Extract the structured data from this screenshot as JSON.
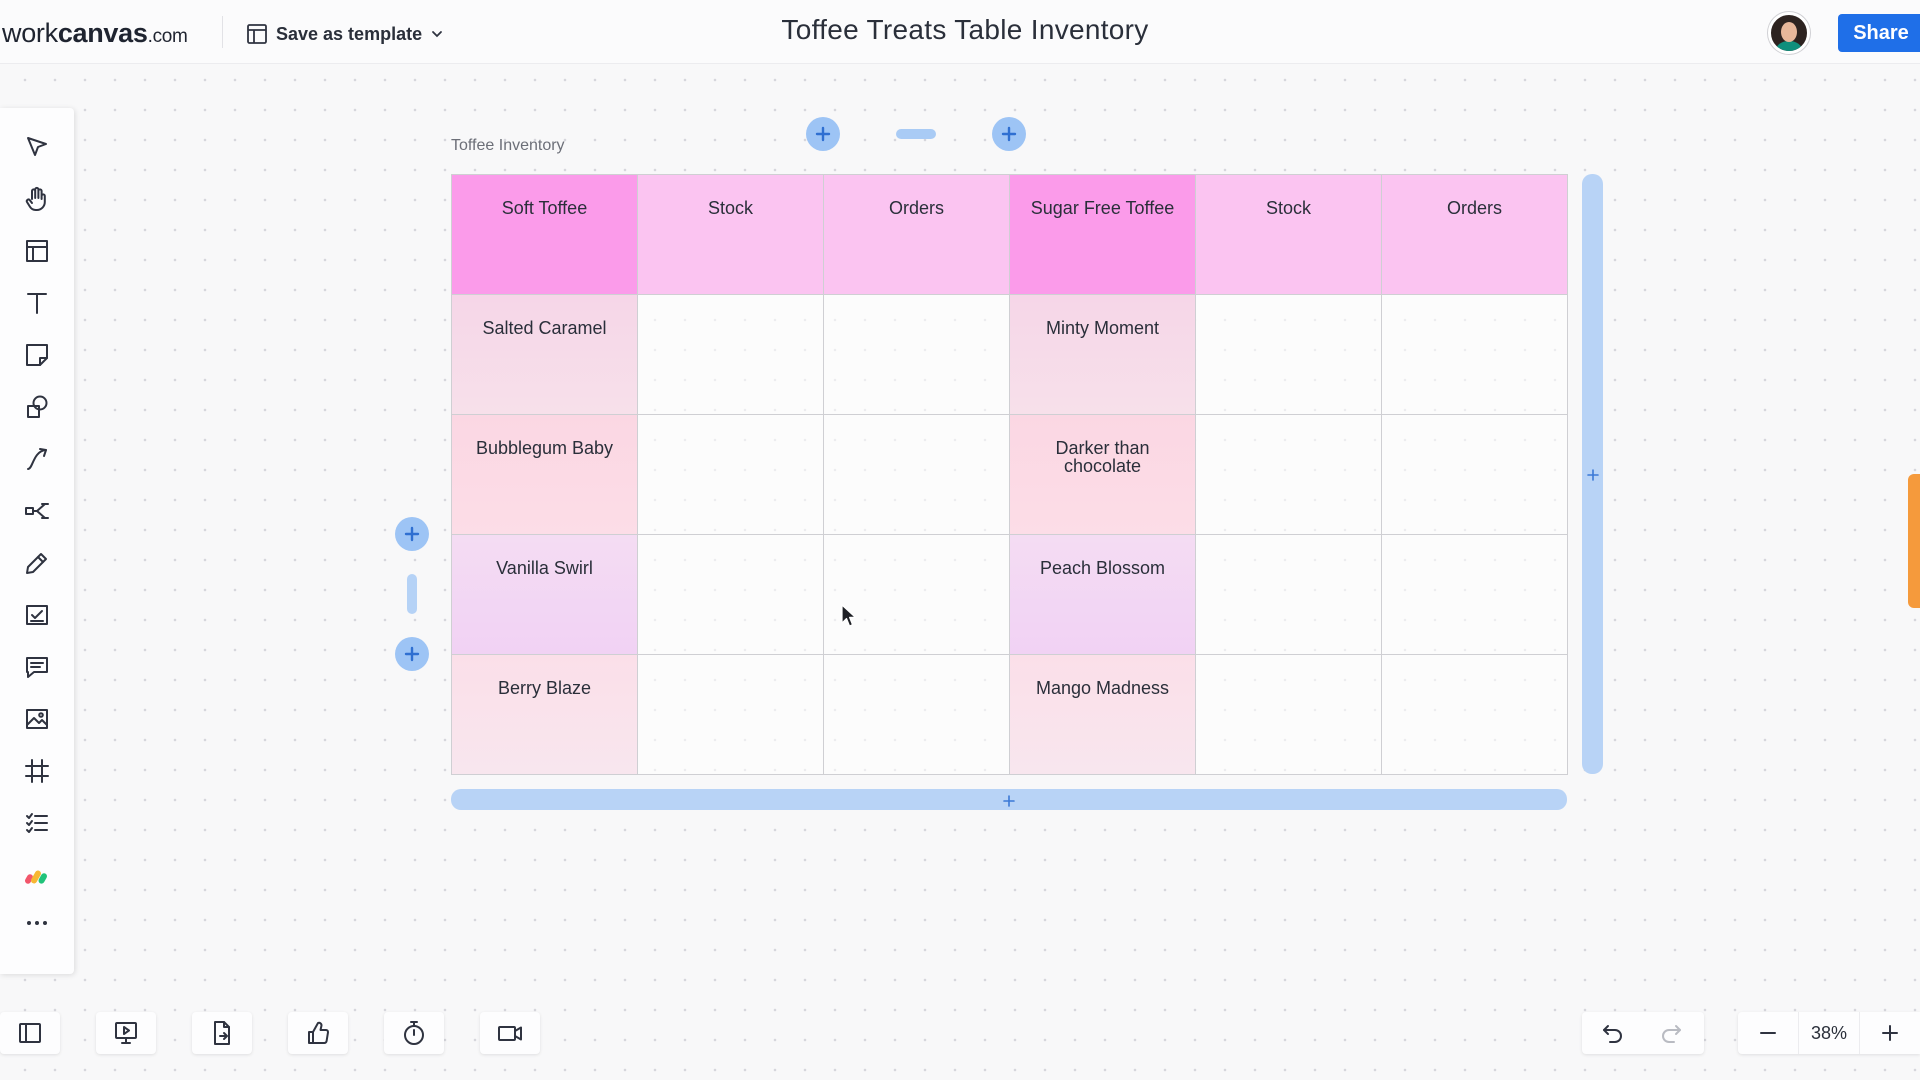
{
  "header": {
    "logo_main": "work",
    "logo_bold": "canvas",
    "logo_suffix": ".com",
    "save_template_label": "Save as template",
    "board_title": "Toffee Treats Table Inventory",
    "share_label": "Share"
  },
  "toolbar": {
    "tools": [
      "select-icon",
      "hand-icon",
      "frame-icon",
      "text-icon",
      "sticky-note-icon",
      "shapes-icon",
      "connector-icon",
      "mind-map-icon",
      "pen-icon",
      "task-icon",
      "comment-icon",
      "image-icon",
      "grid-icon",
      "checklist-icon",
      "apps-icon",
      "more-icon"
    ]
  },
  "table": {
    "frame_label": "Toffee Inventory",
    "headers": [
      "Soft Toffee",
      "Stock",
      "Orders",
      "Sugar Free Toffee",
      "Stock",
      "Orders"
    ],
    "rows": [
      [
        "Salted Caramel",
        "",
        "",
        "Minty Moment",
        "",
        ""
      ],
      [
        "Bubblegum Baby",
        "",
        "",
        "Darker than chocolate",
        "",
        ""
      ],
      [
        "Vanilla Swirl",
        "",
        "",
        "Peach Blossom",
        "",
        ""
      ],
      [
        "Berry Blaze",
        "",
        "",
        "Mango Madness",
        "",
        ""
      ]
    ]
  },
  "bottom_bar": {
    "zoom_level": "38%"
  },
  "colors": {
    "accent": "#1f6fe8",
    "header_hot": "#fb9bea",
    "header_light": "#fbc4f1",
    "handle_blue": "#9dc4f5"
  }
}
